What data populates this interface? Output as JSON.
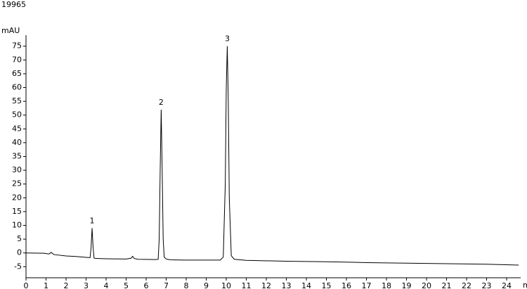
{
  "chart_data": {
    "type": "line",
    "title": "19965",
    "ylabel": "mAU",
    "xlabel": "min",
    "xlim": [
      0,
      24.7
    ],
    "xticks": [
      0,
      1,
      2,
      3,
      4,
      5,
      6,
      7,
      8,
      9,
      10,
      11,
      12,
      13,
      14,
      15,
      16,
      17,
      18,
      19,
      20,
      21,
      22,
      23,
      24
    ],
    "ylim": [
      -9,
      79
    ],
    "yticks": [
      -5,
      0,
      5,
      10,
      15,
      20,
      25,
      30,
      35,
      40,
      45,
      50,
      55,
      60,
      65,
      70,
      75
    ],
    "series": [
      {
        "color": "#000000",
        "x": [
          0,
          0.9,
          1.15,
          1.25,
          1.4,
          2,
          2.5,
          3,
          3.2,
          3.25,
          3.3,
          3.35,
          3.4,
          3.5,
          4,
          5,
          5.25,
          5.32,
          5.4,
          5.6,
          6.5,
          6.6,
          6.65,
          6.7,
          6.75,
          6.8,
          6.85,
          6.9,
          7.0,
          7.2,
          8,
          9.7,
          9.85,
          9.95,
          10.0,
          10.05,
          10.1,
          10.15,
          10.25,
          10.4,
          11,
          13,
          15,
          17,
          19,
          21,
          23,
          24.6
        ],
        "values": [
          0,
          -0.1,
          -0.4,
          0.2,
          -0.6,
          -1.1,
          -1.3,
          -1.6,
          -1.7,
          2,
          9,
          2,
          -1.9,
          -2,
          -2.1,
          -2.2,
          -1.9,
          -1.2,
          -2.0,
          -2.3,
          -2.4,
          -2.3,
          5,
          30,
          52,
          30,
          5,
          -1.5,
          -2.2,
          -2.5,
          -2.6,
          -2.6,
          -1.5,
          25,
          60,
          75,
          55,
          20,
          -1,
          -2.3,
          -2.7,
          -3,
          -3.2,
          -3.5,
          -3.7,
          -3.9,
          -4.1,
          -4.4
        ]
      }
    ],
    "annotations": [
      {
        "text": "1",
        "x": 3.3,
        "y": 9
      },
      {
        "text": "2",
        "x": 6.75,
        "y": 52
      },
      {
        "text": "3",
        "x": 10.05,
        "y": 75
      }
    ]
  }
}
